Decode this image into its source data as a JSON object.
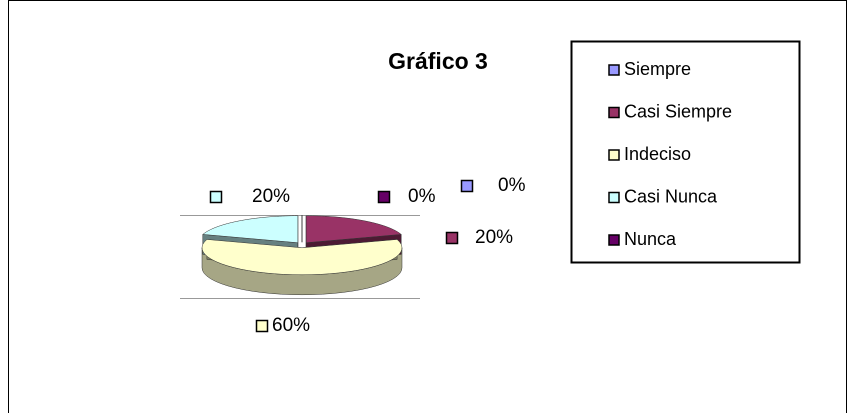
{
  "chart_data": {
    "type": "pie",
    "title": "Gráfico 3",
    "categories": [
      "Siempre",
      "Casi Siempre",
      "Indeciso",
      "Casi Nunca",
      "Nunca"
    ],
    "values": [
      0,
      20,
      60,
      20,
      0
    ],
    "value_labels": [
      "0%",
      "20%",
      "60%",
      "20%",
      "0%"
    ],
    "colors": [
      "#9999ff",
      "#993366",
      "#ffffcc",
      "#ccffff",
      "#660066"
    ],
    "legend": "right"
  }
}
